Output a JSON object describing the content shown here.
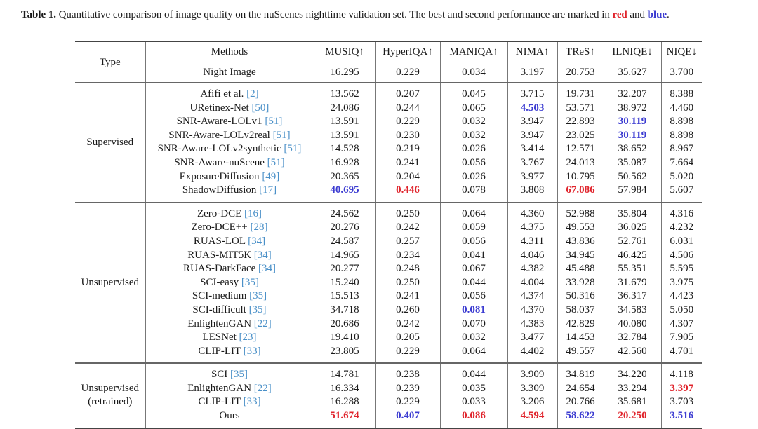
{
  "caption": {
    "label": "Table 1.",
    "text": " Quantitative comparison of image quality on the nuScenes nighttime validation set. The best and second performance are marked in ",
    "red_word": "red",
    "and": " and ",
    "blue_word": "blue",
    "end": "."
  },
  "colors": {
    "best": "#e0242c",
    "second": "#3b3bd1",
    "citation": "#4a90c8"
  },
  "header": {
    "type": "Type",
    "methods": "Methods",
    "columns": [
      "MUSIQ↑",
      "HyperIQA↑",
      "MANIQA↑",
      "NIMA↑",
      "TReS↑",
      "ILNIQE↓",
      "NIQE↓"
    ]
  },
  "baseline": {
    "method": "Night Image",
    "values": [
      "16.295",
      "0.229",
      "0.034",
      "3.197",
      "20.753",
      "35.627",
      "3.700"
    ]
  },
  "groups": [
    {
      "type": "Supervised",
      "rows": [
        {
          "name": "Afifi et al. ",
          "cite": "[2]",
          "values": [
            "13.562",
            "0.207",
            "0.045",
            "3.715",
            "19.731",
            "32.207",
            "8.388"
          ],
          "marks": [
            "",
            "",
            "",
            "",
            "",
            "",
            ""
          ]
        },
        {
          "name": "URetinex-Net ",
          "cite": "[50]",
          "values": [
            "24.086",
            "0.244",
            "0.065",
            "4.503",
            "53.571",
            "38.972",
            "4.460"
          ],
          "marks": [
            "",
            "",
            "",
            "second",
            "",
            "",
            ""
          ]
        },
        {
          "name": "SNR-Aware-LOLv1 ",
          "cite": "[51]",
          "values": [
            "13.591",
            "0.229",
            "0.032",
            "3.947",
            "22.893",
            "30.119",
            "8.898"
          ],
          "marks": [
            "",
            "",
            "",
            "",
            "",
            "second",
            ""
          ]
        },
        {
          "name": "SNR-Aware-LOLv2real ",
          "cite": "[51]",
          "values": [
            "13.591",
            "0.230",
            "0.032",
            "3.947",
            "23.025",
            "30.119",
            "8.898"
          ],
          "marks": [
            "",
            "",
            "",
            "",
            "",
            "second",
            ""
          ]
        },
        {
          "name": "SNR-Aware-LOLv2synthetic ",
          "cite": "[51]",
          "values": [
            "14.528",
            "0.219",
            "0.026",
            "3.414",
            "12.571",
            "38.652",
            "8.967"
          ],
          "marks": [
            "",
            "",
            "",
            "",
            "",
            "",
            ""
          ]
        },
        {
          "name": "SNR-Aware-nuScene ",
          "cite": "[51]",
          "values": [
            "16.928",
            "0.241",
            "0.056",
            "3.767",
            "24.013",
            "35.087",
            "7.664"
          ],
          "marks": [
            "",
            "",
            "",
            "",
            "",
            "",
            ""
          ]
        },
        {
          "name": "ExposureDiffusion ",
          "cite": "[49]",
          "values": [
            "20.365",
            "0.204",
            "0.026",
            "3.977",
            "10.795",
            "50.562",
            "5.020"
          ],
          "marks": [
            "",
            "",
            "",
            "",
            "",
            "",
            ""
          ]
        },
        {
          "name": "ShadowDiffusion ",
          "cite": "[17]",
          "values": [
            "40.695",
            "0.446",
            "0.078",
            "3.808",
            "67.086",
            "57.984",
            "5.607"
          ],
          "marks": [
            "second",
            "best",
            "",
            "",
            "best",
            "",
            ""
          ]
        }
      ]
    },
    {
      "type": "Unsupervised",
      "rows": [
        {
          "name": "Zero-DCE ",
          "cite": "[16]",
          "values": [
            "24.562",
            "0.250",
            "0.064",
            "4.360",
            "52.988",
            "35.804",
            "4.316"
          ],
          "marks": [
            "",
            "",
            "",
            "",
            "",
            "",
            ""
          ]
        },
        {
          "name": "Zero-DCE++ ",
          "cite": "[28]",
          "values": [
            "20.276",
            "0.242",
            "0.059",
            "4.375",
            "49.553",
            "36.025",
            "4.232"
          ],
          "marks": [
            "",
            "",
            "",
            "",
            "",
            "",
            ""
          ]
        },
        {
          "name": "RUAS-LOL ",
          "cite": "[34]",
          "values": [
            "24.587",
            "0.257",
            "0.056",
            "4.311",
            "43.836",
            "52.761",
            "6.031"
          ],
          "marks": [
            "",
            "",
            "",
            "",
            "",
            "",
            ""
          ]
        },
        {
          "name": "RUAS-MIT5K ",
          "cite": "[34]",
          "values": [
            "14.965",
            "0.234",
            "0.041",
            "4.046",
            "34.945",
            "46.425",
            "4.506"
          ],
          "marks": [
            "",
            "",
            "",
            "",
            "",
            "",
            ""
          ]
        },
        {
          "name": "RUAS-DarkFace ",
          "cite": "[34]",
          "values": [
            "20.277",
            "0.248",
            "0.067",
            "4.382",
            "45.488",
            "55.351",
            "5.595"
          ],
          "marks": [
            "",
            "",
            "",
            "",
            "",
            "",
            ""
          ]
        },
        {
          "name": "SCI-easy ",
          "cite": "[35]",
          "values": [
            "15.240",
            "0.250",
            "0.044",
            "4.004",
            "33.928",
            "31.679",
            "3.975"
          ],
          "marks": [
            "",
            "",
            "",
            "",
            "",
            "",
            ""
          ]
        },
        {
          "name": "SCI-medium ",
          "cite": "[35]",
          "values": [
            "15.513",
            "0.241",
            "0.056",
            "4.374",
            "50.316",
            "36.317",
            "4.423"
          ],
          "marks": [
            "",
            "",
            "",
            "",
            "",
            "",
            ""
          ]
        },
        {
          "name": "SCI-difficult ",
          "cite": "[35]",
          "values": [
            "34.718",
            "0.260",
            "0.081",
            "4.370",
            "58.037",
            "34.583",
            "5.050"
          ],
          "marks": [
            "",
            "",
            "second",
            "",
            "",
            "",
            ""
          ]
        },
        {
          "name": "EnlightenGAN ",
          "cite": "[22]",
          "values": [
            "20.686",
            "0.242",
            "0.070",
            "4.383",
            "42.829",
            "40.080",
            "4.307"
          ],
          "marks": [
            "",
            "",
            "",
            "",
            "",
            "",
            ""
          ]
        },
        {
          "name": "LESNet ",
          "cite": "[23]",
          "values": [
            "19.410",
            "0.205",
            "0.032",
            "3.477",
            "14.453",
            "32.784",
            "7.905"
          ],
          "marks": [
            "",
            "",
            "",
            "",
            "",
            "",
            ""
          ]
        },
        {
          "name": "CLIP-LIT ",
          "cite": "[33]",
          "values": [
            "23.805",
            "0.229",
            "0.064",
            "4.402",
            "49.557",
            "42.560",
            "4.701"
          ],
          "marks": [
            "",
            "",
            "",
            "",
            "",
            "",
            ""
          ]
        }
      ]
    },
    {
      "type": "Unsupervised",
      "type_line2": "(retrained)",
      "rows": [
        {
          "name": "SCI ",
          "cite": "[35]",
          "values": [
            "14.781",
            "0.238",
            "0.044",
            "3.909",
            "34.819",
            "34.220",
            "4.118"
          ],
          "marks": [
            "",
            "",
            "",
            "",
            "",
            "",
            ""
          ]
        },
        {
          "name": "EnlightenGAN ",
          "cite": "[22]",
          "values": [
            "16.334",
            "0.239",
            "0.035",
            "3.309",
            "24.654",
            "33.294",
            "3.397"
          ],
          "marks": [
            "",
            "",
            "",
            "",
            "",
            "",
            "best"
          ]
        },
        {
          "name": "CLIP-LIT ",
          "cite": "[33]",
          "values": [
            "16.288",
            "0.229",
            "0.033",
            "3.206",
            "20.766",
            "35.681",
            "3.703"
          ],
          "marks": [
            "",
            "",
            "",
            "",
            "",
            "",
            ""
          ]
        },
        {
          "name": "Ours",
          "cite": "",
          "values": [
            "51.674",
            "0.407",
            "0.086",
            "4.594",
            "58.622",
            "20.250",
            "3.516"
          ],
          "marks": [
            "best",
            "second",
            "best",
            "best",
            "second",
            "best",
            "second"
          ]
        }
      ]
    }
  ]
}
